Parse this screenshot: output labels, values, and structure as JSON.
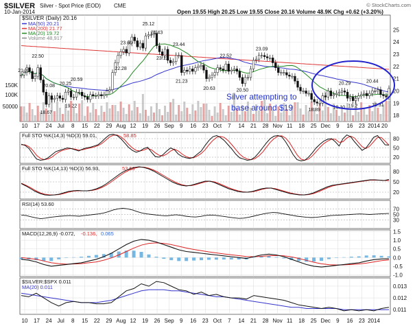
{
  "header": {
    "ticker": "$SILVER",
    "name": "Silver - Spot Price (EOD)",
    "exchange": "CME",
    "date": "10-Jan-2014",
    "quote": "Open 19.55  High 20.25  Low 19.55  Close 20.16  Volume 48.9K  Chg +0.62 (+3.20%)",
    "copyright": "© StockCharts.com"
  },
  "x_axis_labels": [
    "10",
    "17",
    "24",
    "Jul",
    "8",
    "15",
    "22",
    "29",
    "Aug",
    "12",
    "19",
    "26",
    "Sep",
    "9",
    "16",
    "23",
    "Oct",
    "7",
    "14",
    "21",
    "28",
    "Nov",
    "11",
    "18",
    "25",
    "Dec",
    "9",
    "16",
    "23",
    "2014"
  ],
  "x_axis_labels_extra": [
    "20"
  ],
  "chart_data": [
    {
      "type": "candlestick",
      "title": "$SILVER (Daily) 20.16",
      "legend": [
        {
          "name": "$SILVER (Daily) 20.16",
          "color": "#111111"
        },
        {
          "name": "MA(50) 20.21",
          "color": "#3333cc"
        },
        {
          "name": "MA(200) 21.77",
          "color": "#dd3333"
        },
        {
          "name": "MA(20) 19.72",
          "color": "#228822"
        },
        {
          "name": "Volume 48,917",
          "color": "#888888"
        }
      ],
      "ylim": [
        17.5,
        26.2
      ],
      "y_ticks": [
        18,
        19,
        20,
        21,
        22,
        23,
        24,
        25
      ],
      "volume_ticks": [
        "150K",
        "100K",
        "50000"
      ],
      "price_labels": [
        "21.33",
        "22.50",
        "20.08",
        "18.67",
        "20.25",
        "20.59",
        "19.22",
        "22.28",
        "23.60",
        "25.12",
        "24.43",
        "23.11",
        "23.44",
        "21.23",
        "20.63",
        "22.52",
        "20.50",
        "23.09",
        "18.89",
        "20.29",
        "19.10",
        "20.44",
        "19.31",
        "19.2"
      ],
      "price_label_values": [
        21.33,
        22.5,
        20.08,
        18.67,
        20.25,
        20.59,
        19.22,
        22.28,
        23.6,
        25.12,
        24.43,
        23.11,
        23.44,
        21.23,
        20.63,
        22.52,
        20.5,
        23.09,
        18.89,
        20.29,
        19.1,
        20.44,
        19.31,
        19.2
      ],
      "price_label_index": [
        1,
        6,
        10,
        9,
        16,
        20,
        18,
        36,
        38,
        46,
        49,
        51,
        57,
        58,
        68,
        74,
        80,
        87,
        106,
        117,
        115,
        127,
        129,
        120
      ],
      "price_label_pos": [
        "a",
        "a",
        "a",
        "b",
        "a",
        "a",
        "b",
        "b",
        "a",
        "a",
        "a",
        "b",
        "a",
        "b",
        "b",
        "a",
        "b",
        "a",
        "b",
        "a",
        "b",
        "a",
        "b",
        "b"
      ],
      "annotation": [
        "Silver attempting to",
        "base around $19"
      ],
      "close": [
        21.3,
        21.5,
        21.9,
        21.6,
        21.0,
        21.2,
        21.9,
        20.9,
        19.9,
        18.9,
        19.6,
        19.3,
        19.4,
        19.6,
        19.4,
        19.3,
        19.9,
        20.0,
        19.5,
        19.5,
        19.9,
        19.9,
        19.6,
        19.5,
        19.3,
        19.7,
        19.6,
        19.6,
        19.7,
        19.6,
        19.7,
        20.0,
        20.1,
        21.5,
        22.3,
        22.9,
        23.2,
        23.4,
        23.1,
        23.9,
        24.4,
        24.1,
        23.6,
        23.9,
        23.5,
        24.5,
        24.6,
        24.6,
        24.7,
        23.7,
        23.2,
        22.9,
        23.4,
        22.5,
        22.3,
        22.4,
        22.9,
        22.9,
        21.5,
        21.7,
        21.6,
        21.8,
        21.6,
        21.9,
        22.0,
        22.1,
        21.7,
        21.0,
        21.1,
        21.3,
        21.5,
        21.9,
        21.8,
        21.7,
        22.2,
        21.6,
        21.7,
        21.8,
        21.6,
        21.1,
        20.6,
        21.1,
        21.1,
        21.8,
        22.5,
        22.6,
        22.9,
        22.9,
        22.8,
        22.7,
        22.7,
        22.3,
        21.9,
        21.5,
        21.5,
        21.5,
        21.3,
        21.2,
        21.2,
        20.8,
        20.3,
        20.0,
        20.0,
        19.8,
        19.8,
        19.3,
        19.1,
        19.0,
        19.0,
        19.6,
        19.5,
        20.0,
        19.6,
        19.7,
        19.8,
        19.9,
        20.0,
        19.9,
        19.4,
        19.5,
        19.2,
        19.4,
        19.6,
        19.7,
        19.8,
        19.6,
        19.8,
        20.0,
        20.0,
        20.1,
        19.7,
        19.6,
        19.5,
        20.2
      ],
      "ma20_last": 19.72,
      "ma50_last": 20.21,
      "ma200_last": 21.77
    },
    {
      "type": "line",
      "title": "Full STO %K(14,3) %D(3) 59.01, 58.85",
      "legend_black": "Full STO %K(14,3) %D(3) 59.01,",
      "legend_red": "58.85",
      "ylim": [
        0,
        100
      ],
      "y_ticks": [
        20,
        50,
        80
      ],
      "series": [
        {
          "name": "%K",
          "color": "#111111",
          "values": [
            62,
            58,
            48,
            30,
            14,
            10,
            12,
            18,
            28,
            38,
            42,
            46,
            50,
            48,
            44,
            40,
            46,
            50,
            52,
            56,
            60,
            70,
            82,
            92,
            94,
            90,
            80,
            66,
            52,
            42,
            36,
            40,
            48,
            52,
            36,
            22,
            20,
            28,
            40,
            50,
            44,
            30,
            22,
            18,
            16,
            20,
            30,
            40,
            58,
            74,
            86,
            90,
            84,
            74,
            60,
            46,
            30,
            18,
            14,
            10,
            12,
            20,
            34,
            50,
            66,
            80,
            88,
            90,
            86,
            70,
            50,
            28,
            12,
            8,
            10,
            20,
            34,
            50,
            62,
            72,
            78,
            80,
            70,
            56,
            80,
            92,
            86,
            70,
            56,
            42,
            50,
            66,
            84,
            90,
            76,
            60,
            59
          ]
        },
        {
          "name": "%D",
          "color": "#dd2222",
          "values": [
            60,
            60,
            54,
            42,
            26,
            16,
            12,
            14,
            20,
            30,
            38,
            43,
            46,
            48,
            46,
            43,
            44,
            47,
            50,
            53,
            57,
            64,
            74,
            85,
            91,
            92,
            86,
            76,
            62,
            50,
            42,
            40,
            43,
            48,
            44,
            34,
            26,
            24,
            30,
            40,
            46,
            40,
            30,
            22,
            18,
            18,
            24,
            32,
            44,
            60,
            74,
            84,
            87,
            84,
            74,
            60,
            45,
            30,
            20,
            14,
            12,
            15,
            24,
            36,
            52,
            68,
            80,
            88,
            89,
            82,
            68,
            48,
            28,
            14,
            10,
            14,
            24,
            38,
            52,
            64,
            72,
            78,
            78,
            68,
            70,
            82,
            88,
            82,
            68,
            54,
            48,
            56,
            70,
            84,
            84,
            72,
            59
          ]
        }
      ]
    },
    {
      "type": "line",
      "title": "Full STO %K(14,13) %D(3) 56.93, 53.59",
      "legend_black": "Full STO %K(14,13) %D(3) 56.93,",
      "legend_red": "53.59",
      "ylim": [
        0,
        100
      ],
      "y_ticks": [
        20,
        50,
        80
      ],
      "series": [
        {
          "name": "%K",
          "color": "#111111",
          "values": [
            45,
            38,
            30,
            22,
            16,
            12,
            11,
            12,
            14,
            18,
            22,
            24,
            25,
            24,
            24,
            26,
            30,
            36,
            44,
            54,
            64,
            74,
            82,
            88,
            92,
            94,
            92,
            88,
            82,
            74,
            66,
            58,
            50,
            44,
            40,
            38,
            40,
            44,
            48,
            52,
            52,
            48,
            42,
            36,
            30,
            26,
            22,
            20,
            20,
            22,
            26,
            30,
            32,
            32,
            28,
            24,
            20,
            16,
            14,
            12,
            12,
            14,
            18,
            24,
            30,
            36,
            40,
            42,
            44,
            46,
            48,
            50,
            52,
            54,
            56,
            56,
            55,
            54,
            57
          ]
        },
        {
          "name": "%D",
          "color": "#dd2222",
          "values": [
            46,
            40,
            33,
            25,
            18,
            14,
            12,
            12,
            13,
            16,
            20,
            23,
            24,
            24,
            24,
            25,
            28,
            33,
            40,
            49,
            59,
            69,
            78,
            85,
            90,
            93,
            93,
            90,
            85,
            78,
            70,
            62,
            54,
            47,
            42,
            39,
            39,
            42,
            46,
            50,
            52,
            50,
            45,
            39,
            33,
            28,
            24,
            21,
            20,
            21,
            24,
            28,
            31,
            32,
            30,
            26,
            22,
            18,
            15,
            13,
            12,
            13,
            16,
            21,
            27,
            33,
            38,
            41,
            43,
            45,
            47,
            49,
            51,
            53,
            55,
            55,
            55,
            54,
            54
          ]
        }
      ]
    },
    {
      "type": "line",
      "title": "RSI(14) 53.60",
      "legend": "RSI(14) 53.60",
      "ylim": [
        0,
        100
      ],
      "y_ticks": [
        30,
        50,
        70
      ],
      "values": [
        48,
        46,
        42,
        38,
        35,
        37,
        40,
        42,
        44,
        45,
        46,
        45,
        44,
        46,
        48,
        50,
        52,
        55,
        60,
        66,
        70,
        72,
        70,
        66,
        60,
        55,
        52,
        50,
        48,
        46,
        45,
        47,
        49,
        47,
        44,
        42,
        41,
        43,
        46,
        48,
        47,
        45,
        43,
        40,
        38,
        36,
        37,
        40,
        44,
        48,
        52,
        55,
        57,
        56,
        53,
        50,
        47,
        44,
        42,
        40,
        39,
        40,
        42,
        44,
        46,
        47,
        48,
        49,
        50,
        51,
        52,
        51,
        50,
        51,
        52,
        53,
        54
      ]
    },
    {
      "type": "line",
      "title": "MACD(12,26,9) -0.072, -0.136, 0.065",
      "legend_black": "MACD(12,26,9) -0.072,",
      "legend_red": "-0.136,",
      "legend_blue": "0.065",
      "ylim": [
        -1.1,
        1.6
      ],
      "y_ticks": [
        "1.5",
        "1.0",
        "0.5",
        "0.0",
        "-0.5",
        "-1.0"
      ],
      "y_tick_values": [
        1.5,
        1.0,
        0.5,
        0.0,
        -0.5,
        -1.0
      ],
      "series": [
        {
          "name": "MACD",
          "color": "#111111",
          "values": [
            -0.1,
            -0.15,
            -0.25,
            -0.4,
            -0.5,
            -0.45,
            -0.4,
            -0.35,
            -0.3,
            -0.2,
            -0.1,
            0.05,
            0.25,
            0.5,
            0.75,
            0.95,
            1.05,
            1.0,
            0.9,
            0.75,
            0.6,
            0.45,
            0.35,
            0.3,
            0.25,
            0.2,
            0.15,
            0.1,
            0.05,
            0.0,
            -0.05,
            0.05,
            0.15,
            0.2,
            0.15,
            0.05,
            -0.1,
            -0.25,
            -0.4,
            -0.5,
            -0.55,
            -0.5,
            -0.45,
            -0.4,
            -0.35,
            -0.3,
            -0.2,
            -0.12,
            -0.08,
            -0.07
          ]
        },
        {
          "name": "Signal",
          "color": "#dd2222",
          "values": [
            0.0,
            -0.05,
            -0.1,
            -0.2,
            -0.3,
            -0.35,
            -0.38,
            -0.37,
            -0.35,
            -0.3,
            -0.25,
            -0.15,
            -0.02,
            0.15,
            0.35,
            0.55,
            0.72,
            0.82,
            0.85,
            0.82,
            0.75,
            0.65,
            0.55,
            0.47,
            0.4,
            0.33,
            0.27,
            0.21,
            0.16,
            0.11,
            0.06,
            0.05,
            0.07,
            0.1,
            0.12,
            0.1,
            0.04,
            -0.05,
            -0.16,
            -0.27,
            -0.36,
            -0.41,
            -0.43,
            -0.42,
            -0.4,
            -0.37,
            -0.32,
            -0.25,
            -0.18,
            -0.14
          ]
        }
      ]
    },
    {
      "type": "line",
      "title": "$SILVER:$SPX 0.011",
      "legend": [
        {
          "name": "$SILVER:$SPX 0.011",
          "color": "#111111"
        },
        {
          "name": "MA(20) 0.011",
          "color": "#3333cc"
        }
      ],
      "ylim": [
        0.0106,
        0.0137
      ],
      "y_ticks": [
        "0.013",
        "0.012",
        "0.011"
      ],
      "y_tick_values": [
        0.013,
        0.012,
        0.011
      ],
      "series": [
        {
          "name": "$SILVER:$SPX",
          "color": "#111111",
          "values": [
            0.0122,
            0.0121,
            0.0124,
            0.012,
            0.0116,
            0.0113,
            0.0116,
            0.0117,
            0.0116,
            0.0116,
            0.0115,
            0.0115,
            0.0116,
            0.0121,
            0.0126,
            0.0128,
            0.0132,
            0.013,
            0.0134,
            0.0133,
            0.013,
            0.0127,
            0.0126,
            0.0123,
            0.0125,
            0.0122,
            0.0123,
            0.0121,
            0.012,
            0.012,
            0.0119,
            0.0122,
            0.0121,
            0.012,
            0.0119,
            0.0118,
            0.0116,
            0.0114,
            0.0113,
            0.0112,
            0.0111,
            0.0112,
            0.0111,
            0.0109,
            0.011,
            0.0109,
            0.011,
            0.0109,
            0.0111,
            0.0112
          ]
        },
        {
          "name": "MA(20)",
          "color": "#3333cc",
          "values": [
            0.0124,
            0.0123,
            0.0122,
            0.0121,
            0.012,
            0.0119,
            0.0118,
            0.0117,
            0.0116,
            0.0116,
            0.0116,
            0.0117,
            0.0118,
            0.012,
            0.0122,
            0.0124,
            0.0126,
            0.0127,
            0.0127,
            0.0127,
            0.0126,
            0.0126,
            0.0125,
            0.0124,
            0.0123,
            0.0122,
            0.0121,
            0.0121,
            0.012,
            0.0119,
            0.0118,
            0.0117,
            0.0116,
            0.0115,
            0.0114,
            0.0113,
            0.0112,
            0.0112,
            0.0111,
            0.0111,
            0.0111,
            0.0111,
            0.0111,
            0.011,
            0.011,
            0.011,
            0.011,
            0.011,
            0.011,
            0.011
          ]
        }
      ]
    }
  ]
}
